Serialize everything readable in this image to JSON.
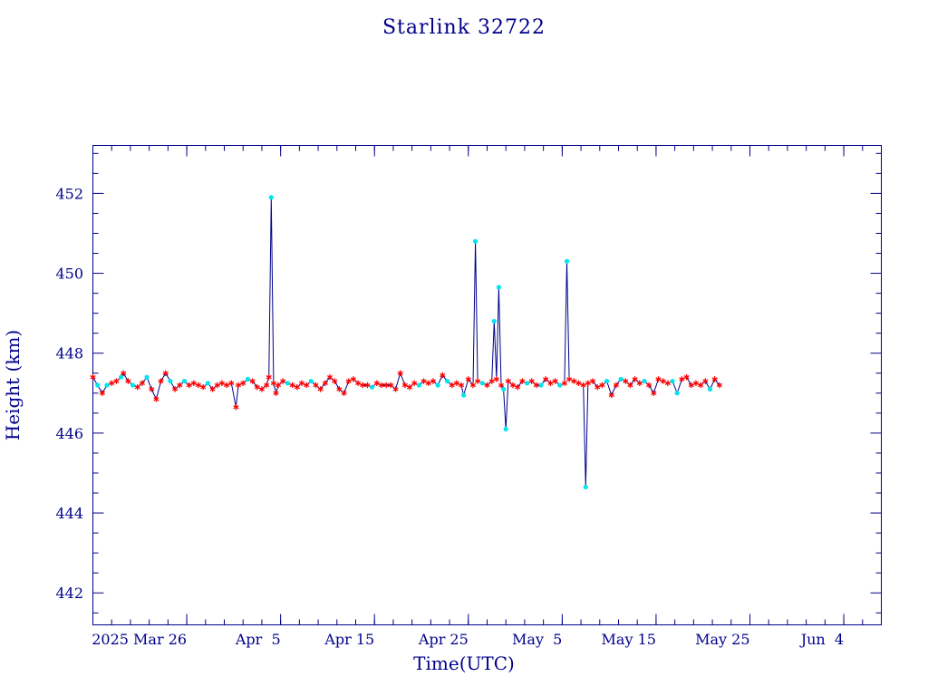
{
  "chart_data": {
    "type": "line",
    "title": "Starlink 32722",
    "xlabel": "Time(UTC)",
    "ylabel": "Height (km)",
    "xlim": [
      "2025-03-16",
      "2025-06-08"
    ],
    "ylim": [
      441.2,
      453.2
    ],
    "x_ticks": [
      {
        "date": "2025-03-26",
        "label": "2025 Mar 26"
      },
      {
        "date": "2025-04-05",
        "label": "Apr  5"
      },
      {
        "date": "2025-04-15",
        "label": "Apr 15"
      },
      {
        "date": "2025-04-25",
        "label": "Apr 25"
      },
      {
        "date": "2025-05-05",
        "label": "May  5"
      },
      {
        "date": "2025-05-15",
        "label": "May 15"
      },
      {
        "date": "2025-05-25",
        "label": "May 25"
      },
      {
        "date": "2025-06-04",
        "label": "Jun  4"
      }
    ],
    "y_ticks": [
      442,
      444,
      446,
      448,
      450,
      452
    ],
    "grid": false,
    "series": [
      {
        "marker_colors": {
          "line": "#00008b",
          "star": "#ff0000",
          "dot": "#00e5ee"
        },
        "points": [
          {
            "x": "2025-03-16 00:00",
            "y": 447.4,
            "m": "star"
          },
          {
            "x": "2025-03-16 12:00",
            "y": 447.2,
            "m": "dot"
          },
          {
            "x": "2025-03-17 00:00",
            "y": 447.0,
            "m": "star"
          },
          {
            "x": "2025-03-17 12:00",
            "y": 447.2,
            "m": "dot"
          },
          {
            "x": "2025-03-18 00:00",
            "y": 447.25,
            "m": "star"
          },
          {
            "x": "2025-03-18 12:00",
            "y": 447.3,
            "m": "star"
          },
          {
            "x": "2025-03-19 00:00",
            "y": 447.4,
            "m": "dot"
          },
          {
            "x": "2025-03-19 06:00",
            "y": 447.5,
            "m": "star"
          },
          {
            "x": "2025-03-19 18:00",
            "y": 447.3,
            "m": "star"
          },
          {
            "x": "2025-03-20 06:00",
            "y": 447.2,
            "m": "dot"
          },
          {
            "x": "2025-03-20 18:00",
            "y": 447.15,
            "m": "star"
          },
          {
            "x": "2025-03-21 06:00",
            "y": 447.25,
            "m": "star"
          },
          {
            "x": "2025-03-21 18:00",
            "y": 447.4,
            "m": "dot"
          },
          {
            "x": "2025-03-22 06:00",
            "y": 447.1,
            "m": "star"
          },
          {
            "x": "2025-03-22 18:00",
            "y": 446.85,
            "m": "star"
          },
          {
            "x": "2025-03-23 06:00",
            "y": 447.3,
            "m": "star"
          },
          {
            "x": "2025-03-23 18:00",
            "y": 447.5,
            "m": "star"
          },
          {
            "x": "2025-03-24 06:00",
            "y": 447.3,
            "m": "dot"
          },
          {
            "x": "2025-03-24 18:00",
            "y": 447.1,
            "m": "star"
          },
          {
            "x": "2025-03-25 06:00",
            "y": 447.2,
            "m": "star"
          },
          {
            "x": "2025-03-25 18:00",
            "y": 447.3,
            "m": "dot"
          },
          {
            "x": "2025-03-26 06:00",
            "y": 447.2,
            "m": "star"
          },
          {
            "x": "2025-03-26 18:00",
            "y": 447.25,
            "m": "star"
          },
          {
            "x": "2025-03-27 06:00",
            "y": 447.2,
            "m": "star"
          },
          {
            "x": "2025-03-27 18:00",
            "y": 447.15,
            "m": "star"
          },
          {
            "x": "2025-03-28 06:00",
            "y": 447.25,
            "m": "dot"
          },
          {
            "x": "2025-03-28 18:00",
            "y": 447.1,
            "m": "star"
          },
          {
            "x": "2025-03-29 06:00",
            "y": 447.2,
            "m": "star"
          },
          {
            "x": "2025-03-29 18:00",
            "y": 447.25,
            "m": "star"
          },
          {
            "x": "2025-03-30 06:00",
            "y": 447.2,
            "m": "star"
          },
          {
            "x": "2025-03-30 18:00",
            "y": 447.25,
            "m": "star"
          },
          {
            "x": "2025-03-31 06:00",
            "y": 446.65,
            "m": "star"
          },
          {
            "x": "2025-03-31 12:00",
            "y": 447.2,
            "m": "star"
          },
          {
            "x": "2025-04-01 00:00",
            "y": 447.25,
            "m": "star"
          },
          {
            "x": "2025-04-01 12:00",
            "y": 447.35,
            "m": "dot"
          },
          {
            "x": "2025-04-02 00:00",
            "y": 447.3,
            "m": "star"
          },
          {
            "x": "2025-04-02 12:00",
            "y": 447.15,
            "m": "star"
          },
          {
            "x": "2025-04-03 00:00",
            "y": 447.1,
            "m": "star"
          },
          {
            "x": "2025-04-03 12:00",
            "y": 447.2,
            "m": "star"
          },
          {
            "x": "2025-04-03 18:00",
            "y": 447.4,
            "m": "star"
          },
          {
            "x": "2025-04-04 00:00",
            "y": 451.9,
            "m": "dot"
          },
          {
            "x": "2025-04-04 06:00",
            "y": 447.25,
            "m": "star"
          },
          {
            "x": "2025-04-04 12:00",
            "y": 447.0,
            "m": "star"
          },
          {
            "x": "2025-04-04 18:00",
            "y": 447.2,
            "m": "star"
          },
          {
            "x": "2025-04-05 06:00",
            "y": 447.3,
            "m": "star"
          },
          {
            "x": "2025-04-05 18:00",
            "y": 447.25,
            "m": "dot"
          },
          {
            "x": "2025-04-06 06:00",
            "y": 447.2,
            "m": "star"
          },
          {
            "x": "2025-04-06 18:00",
            "y": 447.15,
            "m": "star"
          },
          {
            "x": "2025-04-07 06:00",
            "y": 447.25,
            "m": "star"
          },
          {
            "x": "2025-04-07 18:00",
            "y": 447.2,
            "m": "star"
          },
          {
            "x": "2025-04-08 06:00",
            "y": 447.3,
            "m": "dot"
          },
          {
            "x": "2025-04-08 18:00",
            "y": 447.2,
            "m": "star"
          },
          {
            "x": "2025-04-09 06:00",
            "y": 447.1,
            "m": "star"
          },
          {
            "x": "2025-04-09 18:00",
            "y": 447.25,
            "m": "star"
          },
          {
            "x": "2025-04-10 06:00",
            "y": 447.4,
            "m": "star"
          },
          {
            "x": "2025-04-10 18:00",
            "y": 447.3,
            "m": "star"
          },
          {
            "x": "2025-04-11 06:00",
            "y": 447.1,
            "m": "star"
          },
          {
            "x": "2025-04-11 18:00",
            "y": 447.0,
            "m": "star"
          },
          {
            "x": "2025-04-12 06:00",
            "y": 447.3,
            "m": "star"
          },
          {
            "x": "2025-04-12 18:00",
            "y": 447.35,
            "m": "star"
          },
          {
            "x": "2025-04-13 06:00",
            "y": 447.25,
            "m": "star"
          },
          {
            "x": "2025-04-13 18:00",
            "y": 447.2,
            "m": "star"
          },
          {
            "x": "2025-04-14 06:00",
            "y": 447.2,
            "m": "star"
          },
          {
            "x": "2025-04-14 18:00",
            "y": 447.15,
            "m": "dot"
          },
          {
            "x": "2025-04-15 06:00",
            "y": 447.25,
            "m": "star"
          },
          {
            "x": "2025-04-15 18:00",
            "y": 447.2,
            "m": "star"
          },
          {
            "x": "2025-04-16 06:00",
            "y": 447.2,
            "m": "star"
          },
          {
            "x": "2025-04-16 18:00",
            "y": 447.2,
            "m": "star"
          },
          {
            "x": "2025-04-17 06:00",
            "y": 447.1,
            "m": "star"
          },
          {
            "x": "2025-04-17 18:00",
            "y": 447.5,
            "m": "star"
          },
          {
            "x": "2025-04-18 06:00",
            "y": 447.2,
            "m": "star"
          },
          {
            "x": "2025-04-18 18:00",
            "y": 447.15,
            "m": "star"
          },
          {
            "x": "2025-04-19 06:00",
            "y": 447.25,
            "m": "star"
          },
          {
            "x": "2025-04-19 18:00",
            "y": 447.2,
            "m": "dot"
          },
          {
            "x": "2025-04-20 06:00",
            "y": 447.3,
            "m": "star"
          },
          {
            "x": "2025-04-20 18:00",
            "y": 447.25,
            "m": "star"
          },
          {
            "x": "2025-04-21 06:00",
            "y": 447.3,
            "m": "star"
          },
          {
            "x": "2025-04-21 18:00",
            "y": 447.2,
            "m": "dot"
          },
          {
            "x": "2025-04-22 06:00",
            "y": 447.45,
            "m": "star"
          },
          {
            "x": "2025-04-22 18:00",
            "y": 447.3,
            "m": "dot"
          },
          {
            "x": "2025-04-23 06:00",
            "y": 447.2,
            "m": "star"
          },
          {
            "x": "2025-04-23 18:00",
            "y": 447.25,
            "m": "star"
          },
          {
            "x": "2025-04-24 06:00",
            "y": 447.2,
            "m": "star"
          },
          {
            "x": "2025-04-24 12:00",
            "y": 446.95,
            "m": "dot"
          },
          {
            "x": "2025-04-25 00:00",
            "y": 447.35,
            "m": "star"
          },
          {
            "x": "2025-04-25 12:00",
            "y": 447.2,
            "m": "star"
          },
          {
            "x": "2025-04-25 18:00",
            "y": 450.8,
            "m": "dot"
          },
          {
            "x": "2025-04-26 00:00",
            "y": 447.3,
            "m": "star"
          },
          {
            "x": "2025-04-26 12:00",
            "y": 447.25,
            "m": "dot"
          },
          {
            "x": "2025-04-27 00:00",
            "y": 447.2,
            "m": "star"
          },
          {
            "x": "2025-04-27 12:00",
            "y": 447.3,
            "m": "star"
          },
          {
            "x": "2025-04-27 18:00",
            "y": 448.8,
            "m": "dot"
          },
          {
            "x": "2025-04-28 00:00",
            "y": 447.35,
            "m": "star"
          },
          {
            "x": "2025-04-28 06:00",
            "y": 449.65,
            "m": "dot"
          },
          {
            "x": "2025-04-28 12:00",
            "y": 447.2,
            "m": "star"
          },
          {
            "x": "2025-04-28 18:00",
            "y": 447.1,
            "m": "dot"
          },
          {
            "x": "2025-04-29 00:00",
            "y": 446.1,
            "m": "dot"
          },
          {
            "x": "2025-04-29 06:00",
            "y": 447.3,
            "m": "star"
          },
          {
            "x": "2025-04-29 18:00",
            "y": 447.2,
            "m": "star"
          },
          {
            "x": "2025-04-30 06:00",
            "y": 447.15,
            "m": "star"
          },
          {
            "x": "2025-04-30 18:00",
            "y": 447.3,
            "m": "star"
          },
          {
            "x": "2025-05-01 06:00",
            "y": 447.25,
            "m": "dot"
          },
          {
            "x": "2025-05-01 18:00",
            "y": 447.3,
            "m": "star"
          },
          {
            "x": "2025-05-02 06:00",
            "y": 447.2,
            "m": "star"
          },
          {
            "x": "2025-05-02 18:00",
            "y": 447.2,
            "m": "dot"
          },
          {
            "x": "2025-05-03 06:00",
            "y": 447.35,
            "m": "star"
          },
          {
            "x": "2025-05-03 18:00",
            "y": 447.25,
            "m": "star"
          },
          {
            "x": "2025-05-04 06:00",
            "y": 447.3,
            "m": "star"
          },
          {
            "x": "2025-05-04 18:00",
            "y": 447.2,
            "m": "dot"
          },
          {
            "x": "2025-05-05 06:00",
            "y": 447.25,
            "m": "star"
          },
          {
            "x": "2025-05-05 12:00",
            "y": 450.3,
            "m": "dot"
          },
          {
            "x": "2025-05-05 18:00",
            "y": 447.35,
            "m": "star"
          },
          {
            "x": "2025-05-06 06:00",
            "y": 447.3,
            "m": "star"
          },
          {
            "x": "2025-05-06 18:00",
            "y": 447.25,
            "m": "star"
          },
          {
            "x": "2025-05-07 06:00",
            "y": 447.2,
            "m": "star"
          },
          {
            "x": "2025-05-07 12:00",
            "y": 444.65,
            "m": "dot"
          },
          {
            "x": "2025-05-07 18:00",
            "y": 447.25,
            "m": "star"
          },
          {
            "x": "2025-05-08 06:00",
            "y": 447.3,
            "m": "star"
          },
          {
            "x": "2025-05-08 18:00",
            "y": 447.15,
            "m": "star"
          },
          {
            "x": "2025-05-09 06:00",
            "y": 447.2,
            "m": "star"
          },
          {
            "x": "2025-05-09 18:00",
            "y": 447.3,
            "m": "dot"
          },
          {
            "x": "2025-05-10 06:00",
            "y": 446.95,
            "m": "star"
          },
          {
            "x": "2025-05-10 18:00",
            "y": 447.2,
            "m": "star"
          },
          {
            "x": "2025-05-11 06:00",
            "y": 447.35,
            "m": "dot"
          },
          {
            "x": "2025-05-11 18:00",
            "y": 447.3,
            "m": "star"
          },
          {
            "x": "2025-05-12 06:00",
            "y": 447.2,
            "m": "star"
          },
          {
            "x": "2025-05-12 18:00",
            "y": 447.35,
            "m": "star"
          },
          {
            "x": "2025-05-13 06:00",
            "y": 447.25,
            "m": "star"
          },
          {
            "x": "2025-05-13 18:00",
            "y": 447.3,
            "m": "dot"
          },
          {
            "x": "2025-05-14 06:00",
            "y": 447.2,
            "m": "star"
          },
          {
            "x": "2025-05-14 18:00",
            "y": 447.0,
            "m": "star"
          },
          {
            "x": "2025-05-15 06:00",
            "y": 447.35,
            "m": "star"
          },
          {
            "x": "2025-05-15 18:00",
            "y": 447.3,
            "m": "star"
          },
          {
            "x": "2025-05-16 06:00",
            "y": 447.25,
            "m": "star"
          },
          {
            "x": "2025-05-16 18:00",
            "y": 447.3,
            "m": "dot"
          },
          {
            "x": "2025-05-17 06:00",
            "y": 447.0,
            "m": "dot"
          },
          {
            "x": "2025-05-17 18:00",
            "y": 447.35,
            "m": "star"
          },
          {
            "x": "2025-05-18 06:00",
            "y": 447.4,
            "m": "star"
          },
          {
            "x": "2025-05-18 18:00",
            "y": 447.2,
            "m": "star"
          },
          {
            "x": "2025-05-19 06:00",
            "y": 447.25,
            "m": "star"
          },
          {
            "x": "2025-05-19 18:00",
            "y": 447.2,
            "m": "star"
          },
          {
            "x": "2025-05-20 06:00",
            "y": 447.3,
            "m": "star"
          },
          {
            "x": "2025-05-20 18:00",
            "y": 447.1,
            "m": "dot"
          },
          {
            "x": "2025-05-21 06:00",
            "y": 447.35,
            "m": "star"
          },
          {
            "x": "2025-05-21 18:00",
            "y": 447.2,
            "m": "star"
          }
        ]
      }
    ]
  }
}
